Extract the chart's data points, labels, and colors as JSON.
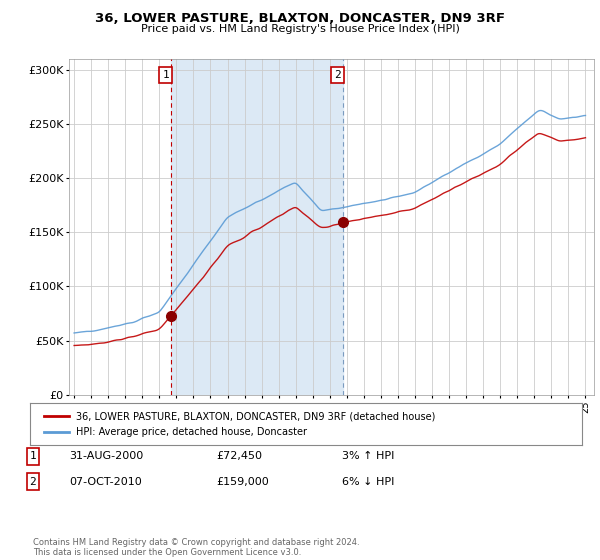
{
  "title": "36, LOWER PASTURE, BLAXTON, DONCASTER, DN9 3RF",
  "subtitle": "Price paid vs. HM Land Registry's House Price Index (HPI)",
  "ylabel_ticks": [
    "£0",
    "£50K",
    "£100K",
    "£150K",
    "£200K",
    "£250K",
    "£300K"
  ],
  "ytick_vals": [
    0,
    50000,
    100000,
    150000,
    200000,
    250000,
    300000
  ],
  "ylim": [
    0,
    310000
  ],
  "sale1_year": 2000.67,
  "sale1_price": 72450,
  "sale2_year": 2010.77,
  "sale2_price": 159000,
  "legend_line1": "36, LOWER PASTURE, BLAXTON, DONCASTER, DN9 3RF (detached house)",
  "legend_line2": "HPI: Average price, detached house, Doncaster",
  "annotation1_date": "31-AUG-2000",
  "annotation1_price": "£72,450",
  "annotation1_hpi": "3% ↑ HPI",
  "annotation2_date": "07-OCT-2010",
  "annotation2_price": "£159,000",
  "annotation2_hpi": "6% ↓ HPI",
  "footer": "Contains HM Land Registry data © Crown copyright and database right 2024.\nThis data is licensed under the Open Government Licence v3.0.",
  "line_color_hpi": "#5b9bd5",
  "line_color_price": "#c00000",
  "shade_color": "#dce9f5",
  "grid_color": "#cccccc",
  "background_color": "#ffffff",
  "plot_bg": "#ffffff",
  "xlim_left": 1994.7,
  "xlim_right": 2025.5
}
